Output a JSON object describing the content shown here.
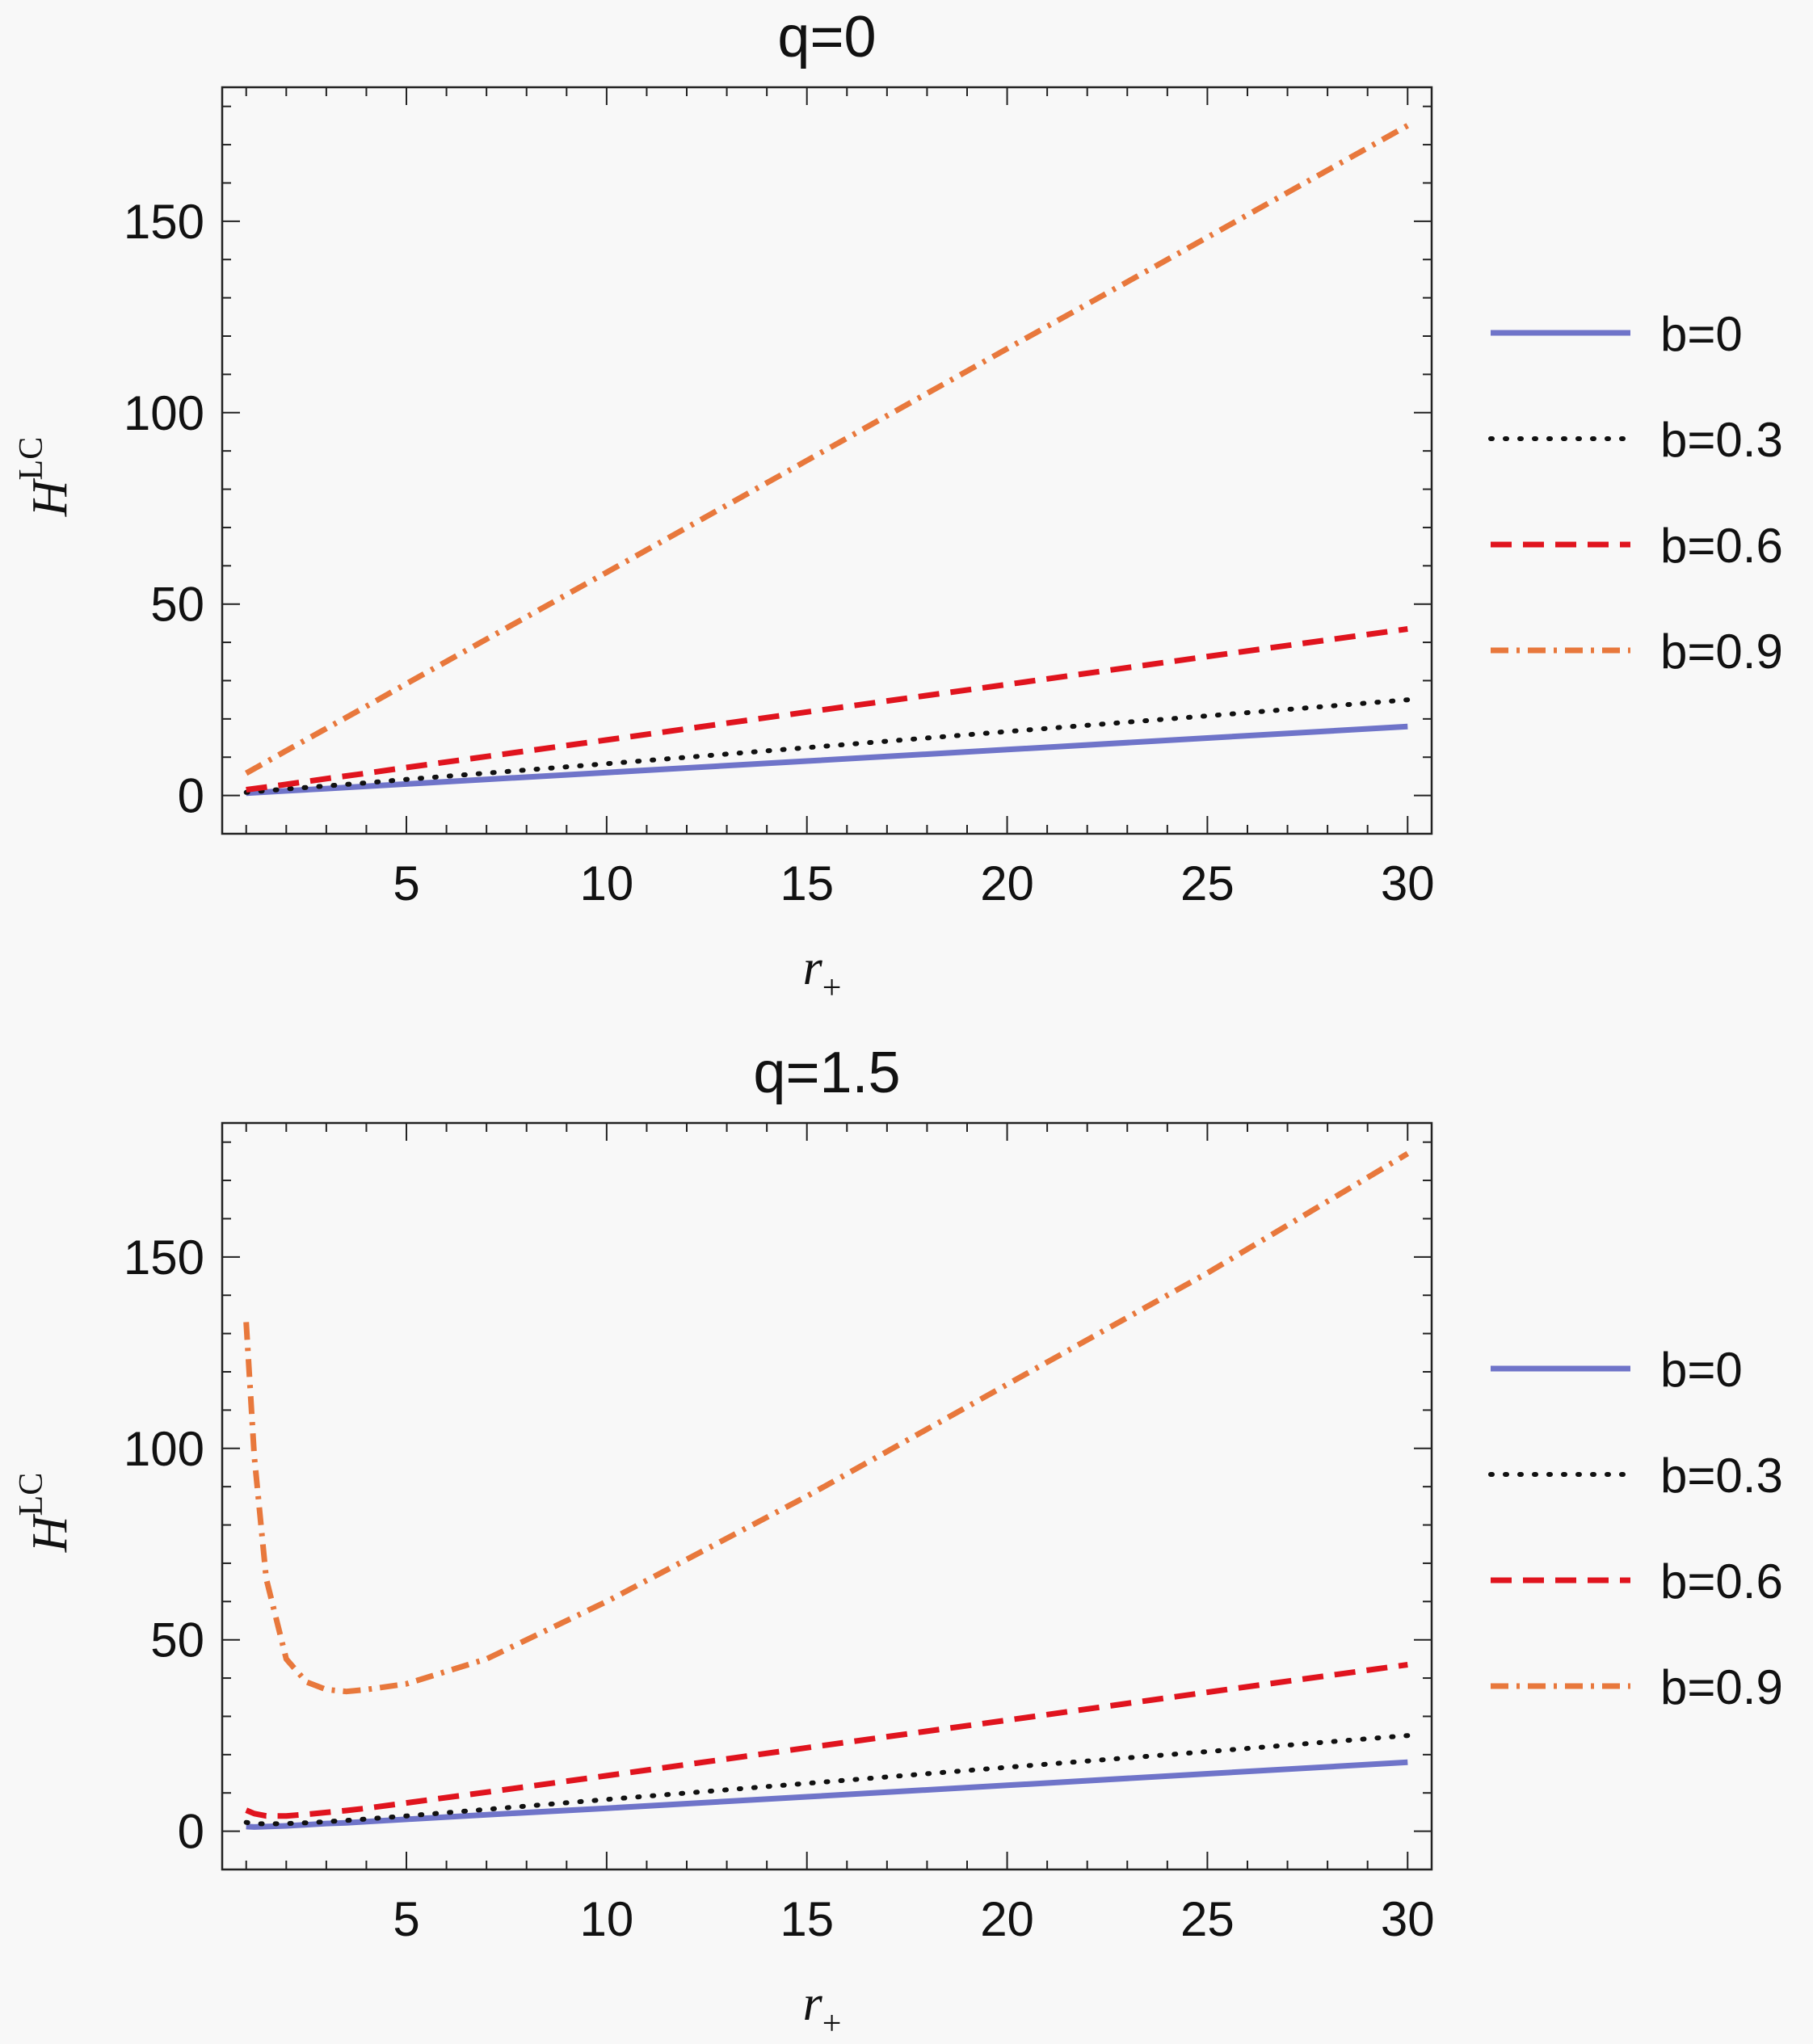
{
  "chart_data": [
    {
      "type": "line",
      "title": "q=0",
      "xlabel": "r",
      "xlabel_sub": "+",
      "ylabel": "H",
      "ylabel_sup": "LC",
      "xlim": [
        0.4,
        30.6
      ],
      "ylim": [
        -10,
        185
      ],
      "xticks": [
        "5",
        "10",
        "15",
        "20",
        "25",
        "30"
      ],
      "xtick_values": [
        5,
        10,
        15,
        20,
        25,
        30
      ],
      "yticks": [
        "0",
        "50",
        "100",
        "150"
      ],
      "ytick_values": [
        0,
        50,
        100,
        150
      ],
      "legend_position": "right",
      "x": [
        1,
        2,
        3,
        4,
        5,
        10,
        15,
        20,
        25,
        30
      ],
      "series": [
        {
          "name": "b=0",
          "style": "solid",
          "color": "#6f74c9",
          "values": [
            0.6,
            1.2,
            1.8,
            2.4,
            3.0,
            6.0,
            9.0,
            12.0,
            15.0,
            18.0
          ]
        },
        {
          "name": "b=0.3",
          "style": "dotted",
          "color": "#111111",
          "values": [
            0.8,
            1.7,
            2.5,
            3.3,
            4.2,
            8.3,
            12.5,
            16.7,
            20.8,
            25.0
          ]
        },
        {
          "name": "b=0.6",
          "style": "dashed",
          "color": "#e0141e",
          "values": [
            1.5,
            2.9,
            4.4,
            5.8,
            7.3,
            14.5,
            21.8,
            29.0,
            36.3,
            43.5
          ]
        },
        {
          "name": "b=0.9",
          "style": "dashdot",
          "color": "#e8783c",
          "values": [
            5.8,
            11.7,
            17.5,
            23.3,
            29.2,
            58.3,
            87.5,
            116.7,
            145.8,
            175.0
          ]
        }
      ]
    },
    {
      "type": "line",
      "title": "q=1.5",
      "xlabel": "r",
      "xlabel_sub": "+",
      "ylabel": "H",
      "ylabel_sup": "LC",
      "xlim": [
        0.4,
        30.6
      ],
      "ylim": [
        -10,
        185
      ],
      "xticks": [
        "5",
        "10",
        "15",
        "20",
        "25",
        "30"
      ],
      "xtick_values": [
        5,
        10,
        15,
        20,
        25,
        30
      ],
      "yticks": [
        "0",
        "50",
        "100",
        "150"
      ],
      "ytick_values": [
        0,
        50,
        100,
        150
      ],
      "legend_position": "right",
      "x": [
        1,
        1.2,
        1.5,
        2,
        2.5,
        3,
        3.5,
        4,
        5,
        7,
        10,
        15,
        20,
        25,
        30
      ],
      "series": [
        {
          "name": "b=0",
          "style": "solid",
          "color": "#6f74c9",
          "values": [
            1.2,
            1.1,
            1.2,
            1.4,
            1.7,
            2.0,
            2.2,
            2.5,
            3.1,
            4.3,
            6.0,
            9.0,
            12.0,
            15.0,
            18.0
          ]
        },
        {
          "name": "b=0.3",
          "style": "dotted",
          "color": "#111111",
          "values": [
            2.3,
            2.0,
            1.9,
            2.0,
            2.2,
            2.5,
            2.8,
            3.2,
            4.0,
            5.7,
            8.3,
            12.5,
            16.7,
            20.8,
            25.0
          ]
        },
        {
          "name": "b=0.6",
          "style": "dashed",
          "color": "#e0141e",
          "values": [
            5.5,
            4.6,
            4.0,
            4.0,
            4.4,
            4.9,
            5.4,
            6.0,
            7.4,
            10.2,
            14.5,
            21.8,
            29.0,
            36.3,
            43.5
          ]
        },
        {
          "name": "b=0.9",
          "style": "dashdot",
          "color": "#e8783c",
          "values": [
            133,
            98,
            66,
            45,
            39,
            37,
            36.5,
            37,
            38.5,
            45,
            60,
            87.5,
            116.7,
            145.8,
            177
          ]
        }
      ]
    }
  ]
}
